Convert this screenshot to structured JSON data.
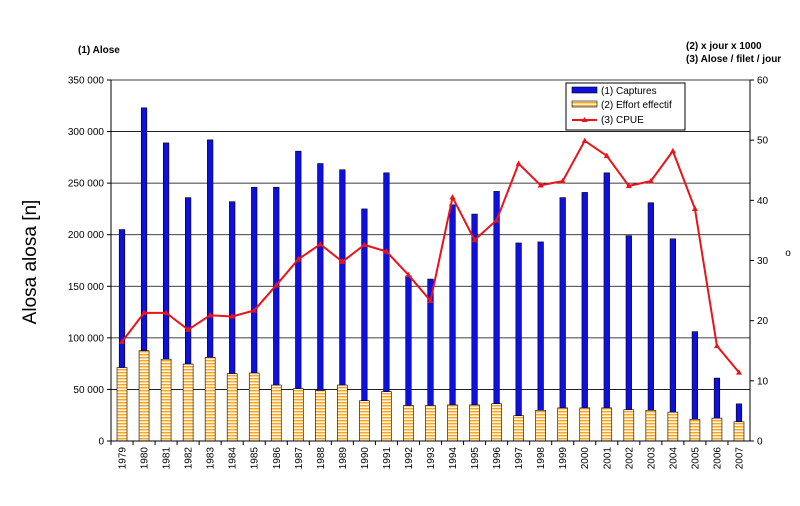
{
  "chart_data": {
    "type": "bar",
    "categories": [
      "1979",
      "1980",
      "1981",
      "1982",
      "1983",
      "1984",
      "1985",
      "1986",
      "1987",
      "1988",
      "1989",
      "1990",
      "1991",
      "1992",
      "1993",
      "1994",
      "1995",
      "1996",
      "1997",
      "1998",
      "1999",
      "2000",
      "2001",
      "2002",
      "2003",
      "2004",
      "2005",
      "2006",
      "2007"
    ],
    "series": [
      {
        "name": "(1) Captures",
        "kind": "bar",
        "axis": "left",
        "color": "#1010dd",
        "values": [
          205000,
          323000,
          289000,
          236000,
          292000,
          232000,
          246000,
          246000,
          281000,
          269000,
          263000,
          225000,
          260000,
          160000,
          157000,
          229000,
          220000,
          242000,
          192000,
          193000,
          236000,
          241000,
          260000,
          199000,
          231000,
          196000,
          106000,
          61000,
          36000
        ]
      },
      {
        "name": "(2) Effort effectif",
        "kind": "bar",
        "axis": "right",
        "color": "#f5a623",
        "values": [
          12.2,
          15.0,
          13.6,
          12.8,
          13.9,
          11.2,
          11.3,
          9.3,
          8.7,
          8.4,
          9.3,
          6.7,
          8.2,
          5.9,
          5.9,
          6.0,
          6.0,
          6.2,
          4.2,
          5.1,
          5.5,
          5.5,
          5.5,
          5.2,
          5.1,
          4.8,
          3.6,
          3.8,
          3.2
        ]
      },
      {
        "name": "(3) CPUE",
        "kind": "line",
        "axis": "right",
        "color": "#e8141c",
        "values": [
          16.5,
          21.3,
          21.3,
          18.5,
          20.9,
          20.7,
          21.7,
          25.9,
          30.2,
          32.7,
          29.8,
          32.6,
          31.5,
          27.6,
          23.3,
          40.5,
          33.4,
          36.7,
          46.1,
          42.5,
          43.2,
          49.9,
          47.4,
          42.4,
          43.2,
          48.2,
          38.6,
          15.8,
          11.4
        ]
      }
    ],
    "ylabel": "Alosa alosa [n]",
    "y2label": "o",
    "ylim": [
      0,
      350000
    ],
    "y2lim": [
      0,
      60
    ],
    "yticks": [
      "0",
      "50 000",
      "100 000",
      "150 000",
      "200 000",
      "250 000",
      "300 000",
      "350 000"
    ],
    "y2ticks": [
      "0",
      "10",
      "20",
      "30",
      "40",
      "50",
      "60"
    ],
    "note_left": "(1) Alose",
    "note_right_1": "(2) x jour x 1000",
    "note_right_2": "(3) Alose / filet / jour",
    "grid": "horizontal",
    "legend_position": "top-right"
  }
}
